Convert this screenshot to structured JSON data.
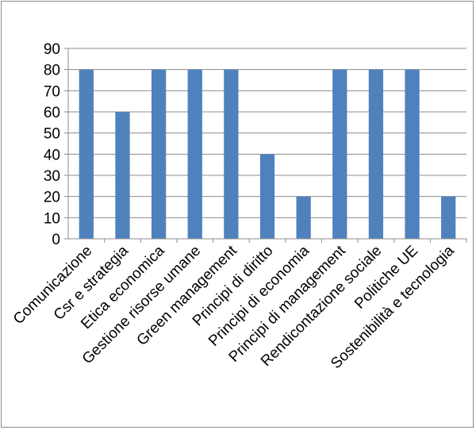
{
  "chart_data": {
    "type": "bar",
    "title": "",
    "xlabel": "",
    "ylabel": "",
    "categories": [
      "Comunicazione",
      "Csr e strategia",
      "Etica economica",
      "Gestione risorse umane",
      "Green management",
      "Principi di diritto",
      "Principi di economia",
      "Principi di management",
      "Rendicontazione sociale",
      "Politiche UE",
      "Sostenibilità e tecnologia"
    ],
    "values": [
      80,
      60,
      80,
      80,
      80,
      40,
      20,
      80,
      80,
      80,
      20
    ],
    "ylim": [
      0,
      90
    ],
    "yticks": [
      "0",
      "10",
      "20",
      "30",
      "40",
      "50",
      "60",
      "70",
      "80",
      "90"
    ],
    "grid": true,
    "legend": "none",
    "colors": {
      "bar": "#4f81bd",
      "grid": "#8c8c8c",
      "axis": "#8c8c8c"
    }
  }
}
